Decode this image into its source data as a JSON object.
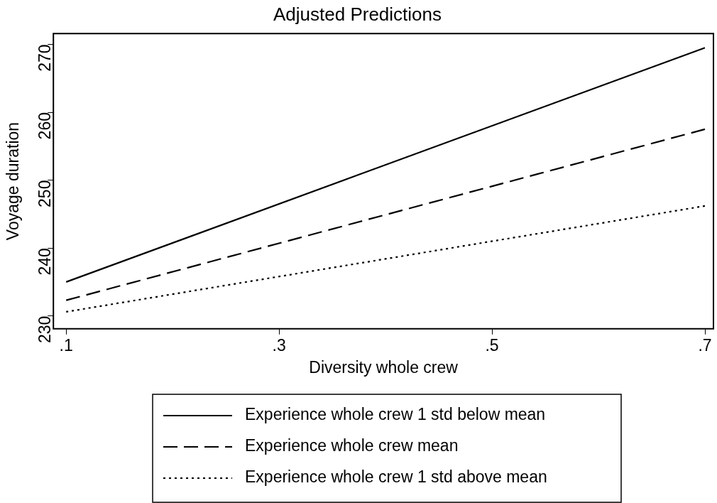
{
  "chart_data": {
    "type": "line",
    "title": "Adjusted Predictions",
    "xlabel": "Diversity whole crew",
    "ylabel": "Voyage duration",
    "x": [
      0.1,
      0.7
    ],
    "series": [
      {
        "name": "Experience whole crew 1 std below mean",
        "color": "#000000",
        "line_style": "solid",
        "values": [
          235.0,
          269.5
        ]
      },
      {
        "name": "Experience whole crew mean",
        "color": "#000000",
        "line_style": "dashed",
        "values": [
          232.3,
          257.5
        ]
      },
      {
        "name": "Experience whole crew 1 std above mean",
        "color": "#000000",
        "line_style": "dotted",
        "values": [
          230.6,
          246.2
        ]
      }
    ],
    "xlim": [
      0.088,
      0.708
    ],
    "ylim": [
      228.1,
      271.6
    ],
    "xticks": [
      {
        "value": 0.1,
        "label": ".1"
      },
      {
        "value": 0.3,
        "label": ".3"
      },
      {
        "value": 0.5,
        "label": ".5"
      },
      {
        "value": 0.7,
        "label": ".7"
      }
    ],
    "yticks": [
      230,
      240,
      250,
      260,
      270
    ],
    "grid": false,
    "legend": "bottom",
    "marker": "none"
  }
}
